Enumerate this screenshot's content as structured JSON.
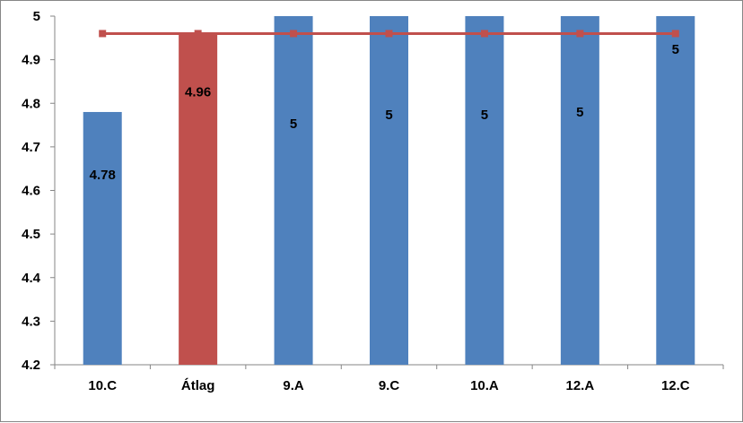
{
  "chart_data": {
    "type": "bar",
    "categories": [
      "10.C",
      "Átlag",
      "9.A",
      "9.C",
      "10.A",
      "12.A",
      "12.C"
    ],
    "values": [
      4.78,
      4.96,
      5,
      5,
      5,
      5,
      5
    ],
    "data_labels": [
      "4.78",
      "4.96",
      "5",
      "5",
      "5",
      "5",
      "5"
    ],
    "bar_colors": [
      "#4F81BD",
      "#C0504D",
      "#4F81BD",
      "#4F81BD",
      "#4F81BD",
      "#4F81BD",
      "#4F81BD"
    ],
    "line": {
      "values": [
        4.96,
        4.96,
        4.96,
        4.96,
        4.96,
        4.96,
        4.96
      ],
      "color": "#C0504D",
      "marker": "square"
    },
    "ylim": [
      4.2,
      5
    ],
    "yticks": [
      4.2,
      4.3,
      4.4,
      4.5,
      4.6,
      4.7,
      4.8,
      4.9,
      5
    ],
    "ytick_labels": [
      "4.2",
      "4.3",
      "4.4",
      "4.5",
      "4.6",
      "4.7",
      "4.8",
      "4.9",
      "5"
    ],
    "grid": false,
    "legend": "none",
    "title": "",
    "xlabel": "",
    "ylabel": ""
  }
}
